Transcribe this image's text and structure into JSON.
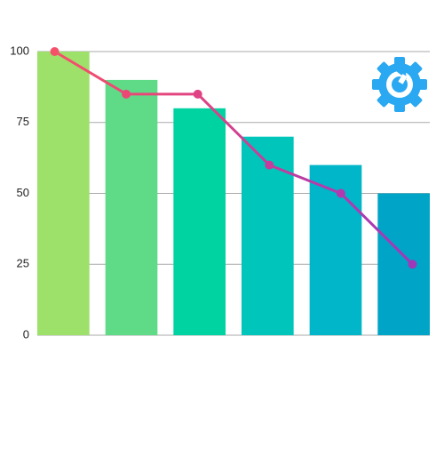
{
  "chart_data": {
    "type": "bar",
    "categories": [
      null,
      null,
      null,
      null,
      null,
      null
    ],
    "series": [
      {
        "type": "bar",
        "values": [
          100,
          90,
          80,
          70,
          60,
          50
        ],
        "colors": [
          "#9de06a",
          "#5fdb87",
          "#00d3a2",
          "#00c5bb",
          "#00b6c8",
          "#00a4c6"
        ]
      },
      {
        "type": "line",
        "values": [
          100,
          85,
          85,
          60,
          50,
          25
        ],
        "colors": [
          "#f5506a",
          "#ec4876",
          "#e04384",
          "#c43c9c",
          "#b23ab0",
          "#9f39b8"
        ]
      }
    ],
    "ylim": [
      0,
      100
    ],
    "yticks": [
      0,
      25,
      50,
      75,
      100
    ],
    "grid": true
  }
}
